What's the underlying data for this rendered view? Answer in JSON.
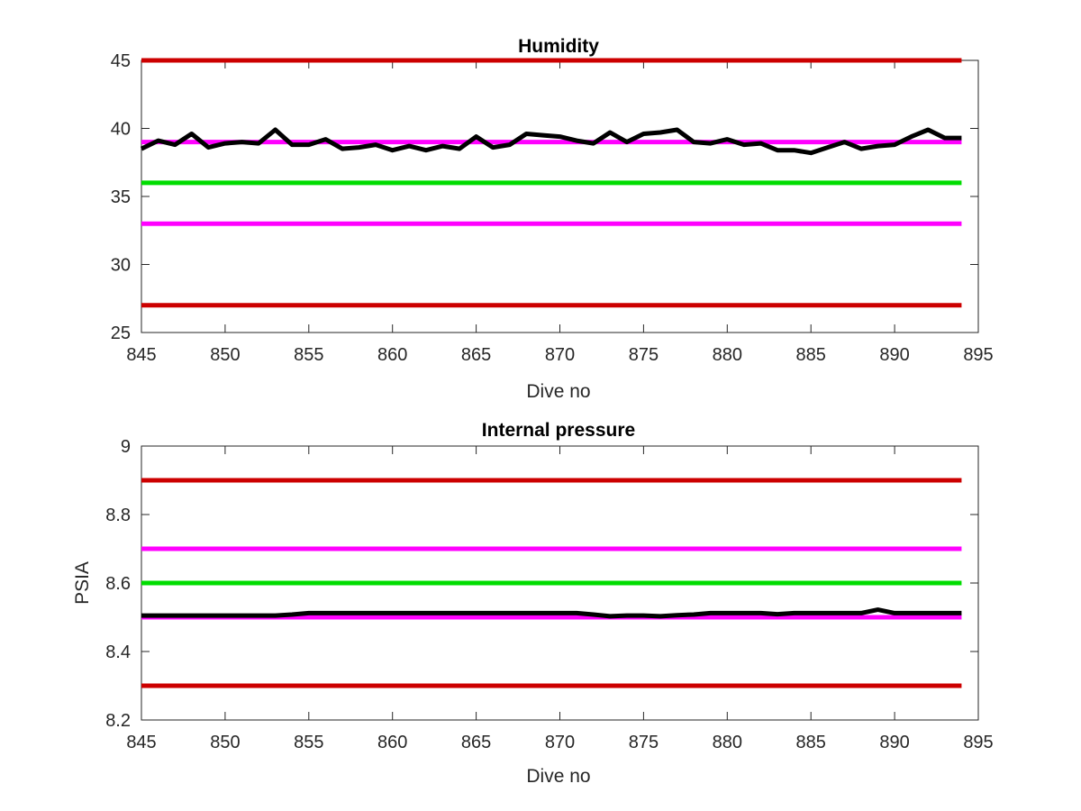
{
  "chart_data": [
    {
      "type": "line",
      "title": "Humidity",
      "xlabel": "Dive no",
      "ylabel": "",
      "xlim": [
        845,
        895
      ],
      "ylim": [
        25,
        45
      ],
      "xticks": [
        845,
        850,
        855,
        860,
        865,
        870,
        875,
        880,
        885,
        890,
        895
      ],
      "yticks": [
        25,
        30,
        35,
        40,
        45
      ],
      "grid": false,
      "legend": "none",
      "reference_lines": [
        {
          "y": 45,
          "color": "#cc0000"
        },
        {
          "y": 39,
          "color": "#ff00ff"
        },
        {
          "y": 36,
          "color": "#00dd00"
        },
        {
          "y": 33,
          "color": "#ff00ff"
        },
        {
          "y": 27,
          "color": "#cc0000"
        }
      ],
      "series": [
        {
          "color": "#000000",
          "x": [
            845,
            846,
            847,
            848,
            849,
            850,
            851,
            852,
            853,
            854,
            855,
            856,
            857,
            858,
            859,
            860,
            861,
            862,
            863,
            864,
            865,
            866,
            867,
            868,
            869,
            870,
            871,
            872,
            873,
            874,
            875,
            876,
            877,
            878,
            879,
            880,
            881,
            882,
            883,
            884,
            885,
            886,
            887,
            888,
            889,
            890,
            891,
            892,
            893,
            894
          ],
          "y": [
            38.5,
            39.1,
            38.8,
            39.6,
            38.6,
            38.9,
            39.0,
            38.9,
            39.9,
            38.8,
            38.8,
            39.2,
            38.5,
            38.6,
            38.8,
            38.4,
            38.7,
            38.4,
            38.7,
            38.5,
            39.4,
            38.6,
            38.8,
            39.6,
            39.5,
            39.4,
            39.1,
            38.9,
            39.7,
            39.0,
            39.6,
            39.7,
            39.9,
            39.0,
            38.9,
            39.2,
            38.8,
            38.9,
            38.4,
            38.4,
            38.2,
            38.6,
            39.0,
            38.5,
            38.7,
            38.8,
            39.4,
            39.9,
            39.3,
            39.3
          ]
        }
      ]
    },
    {
      "type": "line",
      "title": "Internal pressure",
      "xlabel": "Dive no",
      "ylabel": "PSIA",
      "xlim": [
        845,
        895
      ],
      "ylim": [
        8.2,
        9
      ],
      "xticks": [
        845,
        850,
        855,
        860,
        865,
        870,
        875,
        880,
        885,
        890,
        895
      ],
      "yticks": [
        "8.2",
        "8.4",
        "8.6",
        "8.8",
        "9"
      ],
      "grid": false,
      "legend": "none",
      "reference_lines": [
        {
          "y": 8.9,
          "color": "#cc0000"
        },
        {
          "y": 8.7,
          "color": "#ff00ff"
        },
        {
          "y": 8.6,
          "color": "#00dd00"
        },
        {
          "y": 8.5,
          "color": "#ff00ff"
        },
        {
          "y": 8.3,
          "color": "#cc0000"
        }
      ],
      "series": [
        {
          "color": "#000000",
          "x": [
            845,
            846,
            847,
            848,
            849,
            850,
            851,
            852,
            853,
            854,
            855,
            856,
            857,
            858,
            859,
            860,
            861,
            862,
            863,
            864,
            865,
            866,
            867,
            868,
            869,
            870,
            871,
            872,
            873,
            874,
            875,
            876,
            877,
            878,
            879,
            880,
            881,
            882,
            883,
            884,
            885,
            886,
            887,
            888,
            889,
            890,
            891,
            892,
            893,
            894
          ],
          "y": [
            8.505,
            8.505,
            8.505,
            8.505,
            8.505,
            8.505,
            8.505,
            8.505,
            8.505,
            8.508,
            8.512,
            8.512,
            8.512,
            8.512,
            8.512,
            8.512,
            8.512,
            8.512,
            8.512,
            8.512,
            8.512,
            8.512,
            8.512,
            8.512,
            8.512,
            8.512,
            8.512,
            8.508,
            8.503,
            8.505,
            8.505,
            8.503,
            8.506,
            8.508,
            8.512,
            8.512,
            8.512,
            8.512,
            8.509,
            8.512,
            8.512,
            8.512,
            8.512,
            8.512,
            8.522,
            8.512,
            8.512,
            8.512,
            8.512,
            8.512
          ]
        }
      ]
    }
  ]
}
